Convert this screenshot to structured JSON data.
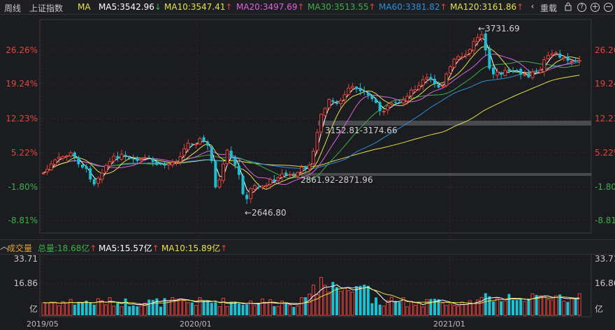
{
  "toolbar": {
    "period": "周线",
    "index_name": "上证指数",
    "indicator": "MA",
    "ma5": "MA5:3542.96",
    "ma5_arrow": "↓",
    "ma10": "MA10:3547.41",
    "ma10_arrow": "↑",
    "ma20": "MA20:3497.69",
    "ma20_arrow": "↑",
    "ma30": "MA30:3513.55",
    "ma30_arrow": "↑",
    "ma60": "MA60:3381.82",
    "ma60_arrow": "↑",
    "ma120": "MA120:3161.86",
    "ma120_arrow": "↑",
    "prev_icon": "chevron-left-icon",
    "overlay_label": "重载",
    "lock_icon": "lock-icon",
    "question_icon": "question-icon",
    "zoom_in_icon": "plus-circle-icon",
    "zoom_out_icon": "minus-circle-icon"
  },
  "colors": {
    "up": "#e8423a",
    "down": "#1fbfd2",
    "ma5": "#ffffff",
    "ma10": "#e6e04a",
    "ma20": "#e060e0",
    "ma30": "#3fae4a",
    "ma60": "#2f8fd8",
    "ma120": "#e6e04a"
  },
  "price_axis": {
    "labels": [
      "26.26%",
      "19.24%",
      "12.23%",
      "5.22%",
      "-1.80%",
      "-8.81%"
    ]
  },
  "annotations": {
    "high": "3731.69",
    "low": "2646.80",
    "gap_upper": "3152.81-3174.66",
    "gap_lower": "2861.92-2871.96"
  },
  "volume": {
    "title": "成交量",
    "total": "总量:18.68亿",
    "total_arrow": "↑",
    "ma5": "MA5:15.57亿",
    "ma5_arrow": "↑",
    "ma10": "MA10:15.89亿",
    "ma10_arrow": "↑",
    "axis_top": "33.71",
    "axis_mid": "16.86",
    "axis_unit": "亿",
    "collapse_icon": "chevron-up-icon"
  },
  "dates": [
    "2019/05",
    "2020/01",
    "2021/01"
  ]
}
